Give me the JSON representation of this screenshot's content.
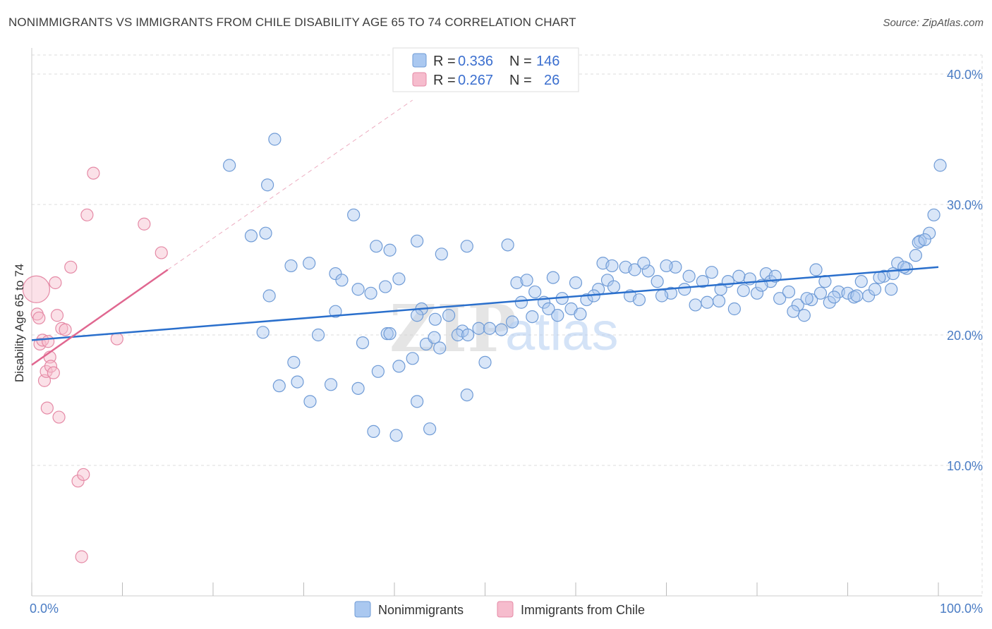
{
  "title": "NONIMMIGRANTS VS IMMIGRANTS FROM CHILE DISABILITY AGE 65 TO 74 CORRELATION CHART",
  "source": "Source: ZipAtlas.com",
  "watermark": {
    "zip": "ZIP",
    "atlas": "atlas"
  },
  "colors": {
    "blue_fill": "#aac8f0",
    "blue_stroke": "#6f9bd6",
    "blue_line": "#2a6fcc",
    "pink_fill": "#f6bccd",
    "pink_stroke": "#e58aa6",
    "pink_line": "#e06790",
    "grid": "#dddddd",
    "axis_text": "#4a7cc4"
  },
  "legend_top": {
    "rows": [
      {
        "r_label": "R =",
        "r_value": "0.336",
        "n_label": "N =",
        "n_value": "146"
      },
      {
        "r_label": "R =",
        "r_value": "0.267",
        "n_label": "N =",
        "n_value": "26"
      }
    ]
  },
  "legend_bottom": [
    "Nonimmigrants",
    "Immigrants from Chile"
  ],
  "chart_data": {
    "type": "scatter",
    "title": "NONIMMIGRANTS VS IMMIGRANTS FROM CHILE DISABILITY AGE 65 TO 74 CORRELATION CHART",
    "xlabel": "",
    "ylabel": "Disability Age 65 to 74",
    "xlim": [
      0,
      100
    ],
    "ylim": [
      0,
      42
    ],
    "x_tick_labels": [
      "0.0%",
      "100.0%"
    ],
    "y_ticks": [
      10,
      20,
      30,
      40
    ],
    "y_tick_labels": [
      "10.0%",
      "20.0%",
      "30.0%",
      "40.0%"
    ],
    "grid": true,
    "legend_position": "top-center",
    "series": [
      {
        "name": "Nonimmigrants",
        "R": 0.336,
        "N": 146,
        "trend": {
          "x": [
            0,
            100
          ],
          "y": [
            19.6,
            25.2
          ]
        },
        "points": [
          [
            21.8,
            33.0
          ],
          [
            26.8,
            35.0
          ],
          [
            26.0,
            31.5
          ],
          [
            35.5,
            29.2
          ],
          [
            24.2,
            27.6
          ],
          [
            25.8,
            27.8
          ],
          [
            28.6,
            25.3
          ],
          [
            26.2,
            23.0
          ],
          [
            30.6,
            25.5
          ],
          [
            33.5,
            24.7
          ],
          [
            34.2,
            24.2
          ],
          [
            38.0,
            26.8
          ],
          [
            39.5,
            26.5
          ],
          [
            42.5,
            27.2
          ],
          [
            45.2,
            26.2
          ],
          [
            48.0,
            26.8
          ],
          [
            36.0,
            23.5
          ],
          [
            37.4,
            23.2
          ],
          [
            39.0,
            23.7
          ],
          [
            40.5,
            24.3
          ],
          [
            43.0,
            22.0
          ],
          [
            46.0,
            21.5
          ],
          [
            47.5,
            20.3
          ],
          [
            49.3,
            20.5
          ],
          [
            50.5,
            20.5
          ],
          [
            42.5,
            21.5
          ],
          [
            44.5,
            21.2
          ],
          [
            33.5,
            21.8
          ],
          [
            25.5,
            20.2
          ],
          [
            31.6,
            20.0
          ],
          [
            36.5,
            19.4
          ],
          [
            39.2,
            20.1
          ],
          [
            39.5,
            20.1
          ],
          [
            43.5,
            19.3
          ],
          [
            44.4,
            19.8
          ],
          [
            47.0,
            20.0
          ],
          [
            48.1,
            20.0
          ],
          [
            28.9,
            17.9
          ],
          [
            29.3,
            16.4
          ],
          [
            33.0,
            16.2
          ],
          [
            38.2,
            17.2
          ],
          [
            40.5,
            17.6
          ],
          [
            42.0,
            18.2
          ],
          [
            45.0,
            19.0
          ],
          [
            51.8,
            20.4
          ],
          [
            27.3,
            16.1
          ],
          [
            30.7,
            14.9
          ],
          [
            36.0,
            15.9
          ],
          [
            42.5,
            14.9
          ],
          [
            48.0,
            15.4
          ],
          [
            50.0,
            17.9
          ],
          [
            37.7,
            12.6
          ],
          [
            40.2,
            12.3
          ],
          [
            43.9,
            12.8
          ],
          [
            52.5,
            26.9
          ],
          [
            53.5,
            24.0
          ],
          [
            54.6,
            24.2
          ],
          [
            55.5,
            23.3
          ],
          [
            56.5,
            22.5
          ],
          [
            57.5,
            24.4
          ],
          [
            58.5,
            22.8
          ],
          [
            60.0,
            24.0
          ],
          [
            61.2,
            22.7
          ],
          [
            62.5,
            23.5
          ],
          [
            63.5,
            24.2
          ],
          [
            64.2,
            23.7
          ],
          [
            65.5,
            25.2
          ],
          [
            66.0,
            23.0
          ],
          [
            67.0,
            22.7
          ],
          [
            68.0,
            24.9
          ],
          [
            69.0,
            24.1
          ],
          [
            70.5,
            23.2
          ],
          [
            71.0,
            25.2
          ],
          [
            72.0,
            23.5
          ],
          [
            73.2,
            22.3
          ],
          [
            74.0,
            24.1
          ],
          [
            75.0,
            24.8
          ],
          [
            75.8,
            22.6
          ],
          [
            76.8,
            24.1
          ],
          [
            77.5,
            22.0
          ],
          [
            78.5,
            23.4
          ],
          [
            79.2,
            24.3
          ],
          [
            80.0,
            23.2
          ],
          [
            81.0,
            24.7
          ],
          [
            81.5,
            24.1
          ],
          [
            82.5,
            22.8
          ],
          [
            83.5,
            23.3
          ],
          [
            84.5,
            22.3
          ],
          [
            85.2,
            21.5
          ],
          [
            86.0,
            22.7
          ],
          [
            86.5,
            25.0
          ],
          [
            87.5,
            24.1
          ],
          [
            88.0,
            22.5
          ],
          [
            89.0,
            23.3
          ],
          [
            90.0,
            23.2
          ],
          [
            90.7,
            22.9
          ],
          [
            91.5,
            24.1
          ],
          [
            92.3,
            23.0
          ],
          [
            93.0,
            23.5
          ],
          [
            94.0,
            24.5
          ],
          [
            94.8,
            23.5
          ],
          [
            95.5,
            25.5
          ],
          [
            96.5,
            25.1
          ],
          [
            97.5,
            26.1
          ],
          [
            98.0,
            27.2
          ],
          [
            99.0,
            27.8
          ],
          [
            99.5,
            29.2
          ],
          [
            100.2,
            33.0
          ],
          [
            53.0,
            21.0
          ],
          [
            54.0,
            22.5
          ],
          [
            55.2,
            21.4
          ],
          [
            57.0,
            22.0
          ],
          [
            58.0,
            21.5
          ],
          [
            59.5,
            22.0
          ],
          [
            60.5,
            21.6
          ],
          [
            62.0,
            23.0
          ],
          [
            63.0,
            25.5
          ],
          [
            64.0,
            25.3
          ],
          [
            66.5,
            25.0
          ],
          [
            67.5,
            25.5
          ],
          [
            69.5,
            23.0
          ],
          [
            70.0,
            25.3
          ],
          [
            72.5,
            24.5
          ],
          [
            74.5,
            22.5
          ],
          [
            76.0,
            23.5
          ],
          [
            78.0,
            24.5
          ],
          [
            80.5,
            23.8
          ],
          [
            82.0,
            24.5
          ],
          [
            84.0,
            21.8
          ],
          [
            85.5,
            22.8
          ],
          [
            87.0,
            23.2
          ],
          [
            88.5,
            22.9
          ],
          [
            91.0,
            23.0
          ],
          [
            93.5,
            24.4
          ],
          [
            95.0,
            24.7
          ],
          [
            96.2,
            25.2
          ],
          [
            97.8,
            27.1
          ],
          [
            98.5,
            27.3
          ]
        ]
      },
      {
        "name": "Immigrants from Chile",
        "R": 0.267,
        "N": 26,
        "trend": {
          "x": [
            0,
            15
          ],
          "y": [
            17.7,
            25.0
          ]
        },
        "trend_ext": {
          "x": [
            15,
            42
          ],
          "y": [
            25.0,
            38.0
          ]
        },
        "points": [
          [
            0.5,
            23.5
          ],
          [
            0.6,
            21.6
          ],
          [
            0.8,
            21.3
          ],
          [
            0.9,
            19.3
          ],
          [
            1.2,
            19.6
          ],
          [
            1.4,
            16.5
          ],
          [
            1.6,
            17.2
          ],
          [
            1.7,
            14.4
          ],
          [
            1.8,
            19.5
          ],
          [
            2.0,
            18.3
          ],
          [
            2.1,
            17.6
          ],
          [
            2.4,
            17.1
          ],
          [
            2.6,
            24.0
          ],
          [
            2.8,
            21.5
          ],
          [
            3.0,
            13.7
          ],
          [
            3.3,
            20.5
          ],
          [
            3.7,
            20.4
          ],
          [
            4.3,
            25.2
          ],
          [
            5.1,
            8.8
          ],
          [
            5.7,
            9.3
          ],
          [
            5.5,
            3.0
          ],
          [
            6.1,
            29.2
          ],
          [
            6.8,
            32.4
          ],
          [
            9.4,
            19.7
          ],
          [
            12.4,
            28.5
          ],
          [
            14.3,
            26.3
          ]
        ]
      }
    ]
  }
}
